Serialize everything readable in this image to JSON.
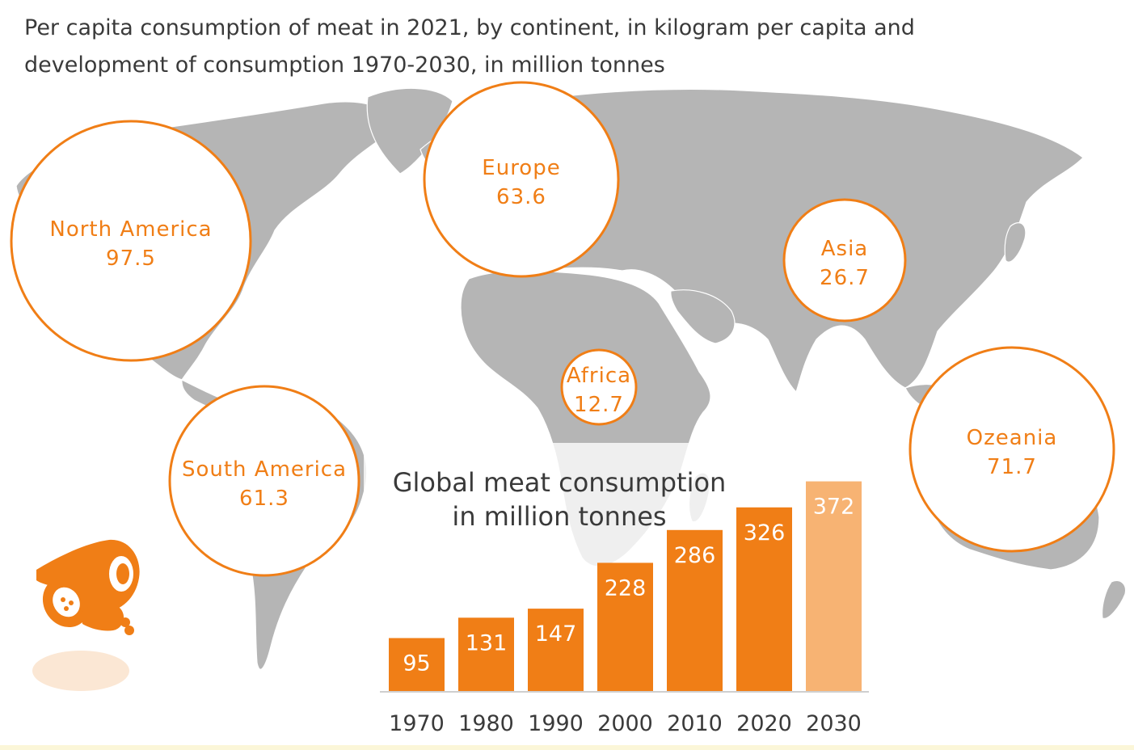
{
  "title": {
    "line1": "Per capita consumption of meat in 2021, by continent, in kilogram per capita and",
    "line2": "development of consumption 1970-2030, in million tonnes"
  },
  "colors": {
    "accent": "#f07e16",
    "accent_light": "#f7b373",
    "land": "#b5b5b5",
    "land_border": "#ffffff",
    "axis": "#cfcfcf",
    "text": "#3a3a3a"
  },
  "icon": "meat-icon",
  "chart_data": [
    {
      "type": "bubble",
      "title": "Per capita consumption of meat in 2021, by continent",
      "unit": "kilogram per capita",
      "points": [
        {
          "label": "North America",
          "value": "97.5"
        },
        {
          "label": "Europe",
          "value": "63.6"
        },
        {
          "label": "Asia",
          "value": "26.7"
        },
        {
          "label": "Africa",
          "value": "12.7"
        },
        {
          "label": "South America",
          "value": "61.3"
        },
        {
          "label": "Ozeania",
          "value": "71.7"
        }
      ]
    },
    {
      "type": "bar",
      "title_line1": "Global meat consumption",
      "title_line2": "in million tonnes",
      "categories": [
        "1970",
        "1980",
        "1990",
        "2000",
        "2010",
        "2020",
        "2030"
      ],
      "values": [
        95,
        131,
        147,
        228,
        286,
        326,
        372
      ],
      "projected": [
        false,
        false,
        false,
        false,
        false,
        false,
        true
      ],
      "ylim": [
        0,
        400
      ]
    }
  ]
}
